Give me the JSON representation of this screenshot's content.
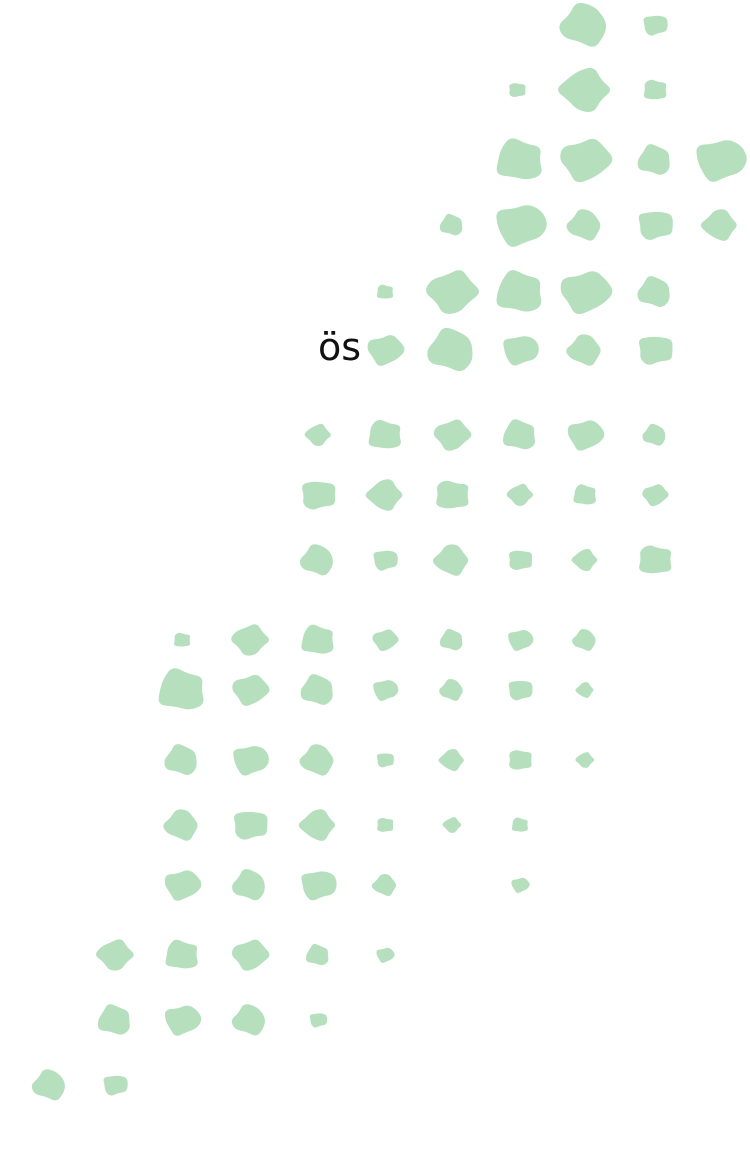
{
  "text": "ös"
}
